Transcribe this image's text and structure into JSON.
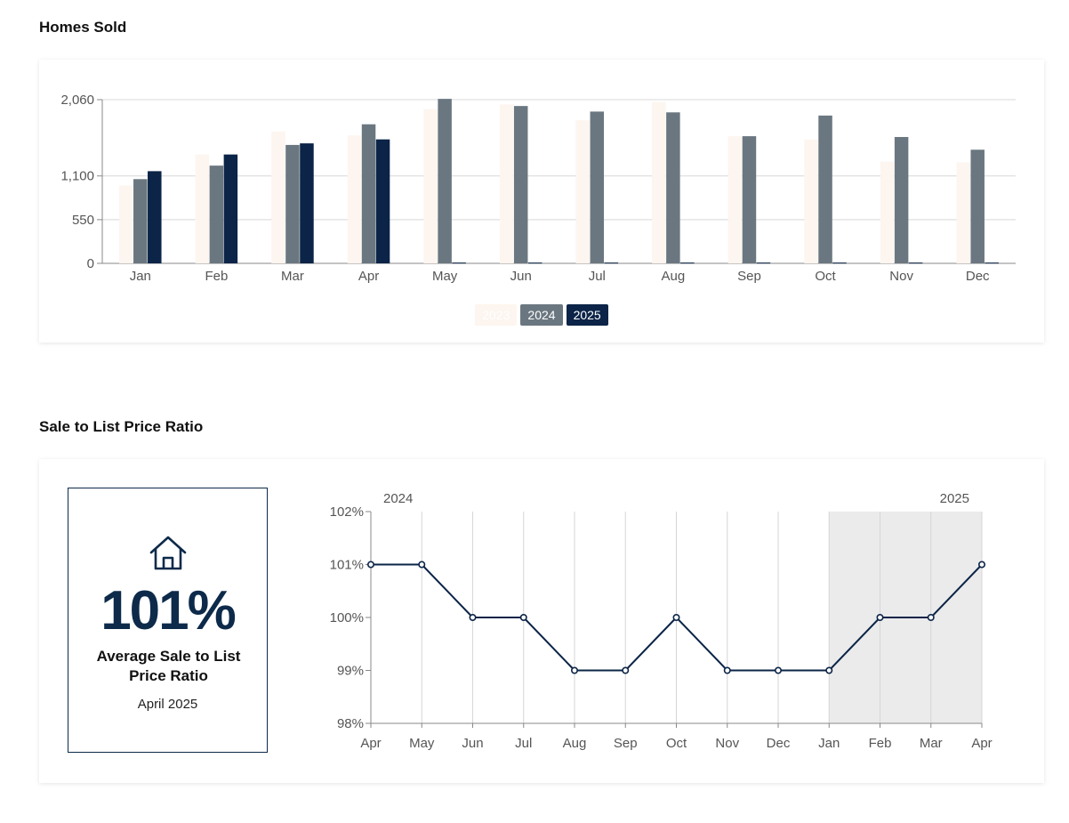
{
  "homes_sold": {
    "title": "Homes Sold"
  },
  "sale_ratio": {
    "title": "Sale to List Price Ratio",
    "kpi_value": "101%",
    "kpi_label": "Average Sale to List Price Ratio",
    "kpi_period": "April 2025",
    "kpi_icon": "house-icon"
  },
  "chart_data": [
    {
      "type": "bar",
      "title": "Homes Sold",
      "categories": [
        "Jan",
        "Feb",
        "Mar",
        "Apr",
        "May",
        "Jun",
        "Jul",
        "Aug",
        "Sep",
        "Oct",
        "Nov",
        "Dec"
      ],
      "series": [
        {
          "name": "2023",
          "color": "#fdf5ef",
          "values": [
            980,
            1370,
            1660,
            1610,
            1940,
            2000,
            1800,
            2030,
            1600,
            1560,
            1280,
            1270
          ]
        },
        {
          "name": "2024",
          "color": "#6b7780",
          "values": [
            1060,
            1230,
            1490,
            1750,
            2070,
            1980,
            1910,
            1900,
            1600,
            1860,
            1590,
            1430
          ]
        },
        {
          "name": "2025",
          "color": "#0b2447",
          "values": [
            1160,
            1370,
            1510,
            1560,
            10,
            10,
            10,
            10,
            10,
            10,
            10,
            10
          ]
        }
      ],
      "yticks": [
        0,
        550,
        1100,
        2060
      ],
      "ytick_labels": [
        "0",
        "550",
        "1,100",
        "2,060"
      ],
      "ylim": [
        0,
        2060
      ],
      "grid": true,
      "legend": "bottom-center"
    },
    {
      "type": "line",
      "title": "Sale to List Price Ratio",
      "x": [
        "Apr",
        "May",
        "Jun",
        "Jul",
        "Aug",
        "Sep",
        "Oct",
        "Nov",
        "Dec",
        "Jan",
        "Feb",
        "Mar",
        "Apr"
      ],
      "year_labels": [
        "2024",
        "2025"
      ],
      "series": [
        {
          "color": "#0b2447",
          "values": [
            101,
            101,
            100,
            100,
            99,
            99,
            100,
            99,
            99,
            99,
            100,
            100,
            101
          ]
        }
      ],
      "yticks": [
        98,
        99,
        100,
        101,
        102
      ],
      "ytick_labels": [
        "98%",
        "99%",
        "100%",
        "101%",
        "102%"
      ],
      "ylim": [
        98,
        102
      ],
      "highlight_range": [
        "Jan",
        "Apr"
      ],
      "grid": true
    }
  ]
}
